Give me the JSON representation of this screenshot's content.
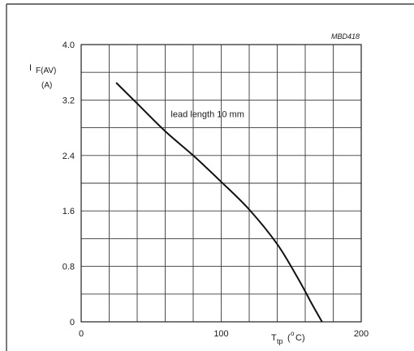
{
  "chart_data": {
    "type": "line",
    "figure_code": "MBD418",
    "ylabel": {
      "symbol": "I",
      "subscript": "F(AV)",
      "unit": "(A)"
    },
    "xlabel": {
      "symbol": "T",
      "subscript": "tp",
      "unit_open": "(",
      "unit_degree": "o",
      "unit_rest": "C)"
    },
    "xlim": [
      0,
      200
    ],
    "ylim": [
      0,
      4.0
    ],
    "x_ticks": [
      {
        "value": 0,
        "label": "0"
      },
      {
        "value": 100,
        "label": "100"
      },
      {
        "value": 200,
        "label": "200"
      }
    ],
    "y_ticks": [
      {
        "value": 0,
        "label": "0"
      },
      {
        "value": 0.8,
        "label": "0.8"
      },
      {
        "value": 1.6,
        "label": "1.6"
      },
      {
        "value": 2.4,
        "label": "2.4"
      },
      {
        "value": 3.2,
        "label": "3.2"
      },
      {
        "value": 4.0,
        "label": "4.0"
      }
    ],
    "grid": {
      "x_step": 20,
      "y_step": 0.4,
      "shown": true
    },
    "series": [
      {
        "name": "lead length 10 mm",
        "points": [
          {
            "x": 25,
            "y": 3.45
          },
          {
            "x": 40,
            "y": 3.15
          },
          {
            "x": 60,
            "y": 2.75
          },
          {
            "x": 80,
            "y": 2.4
          },
          {
            "x": 100,
            "y": 2.02
          },
          {
            "x": 120,
            "y": 1.62
          },
          {
            "x": 140,
            "y": 1.12
          },
          {
            "x": 155,
            "y": 0.62
          },
          {
            "x": 165,
            "y": 0.25
          },
          {
            "x": 172,
            "y": 0
          }
        ]
      }
    ],
    "annotations": [
      {
        "text": "lead length 10 mm",
        "x": 64,
        "y": 3.0
      }
    ]
  }
}
